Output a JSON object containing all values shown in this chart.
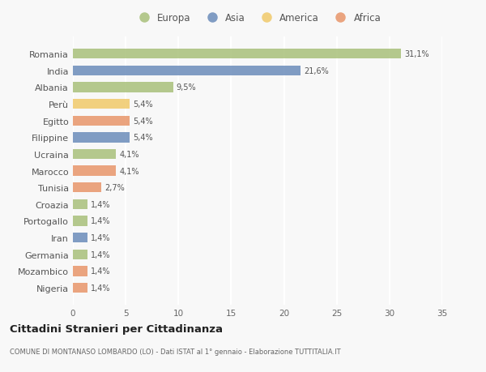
{
  "countries": [
    "Romania",
    "India",
    "Albania",
    "Perù",
    "Egitto",
    "Filippine",
    "Ucraina",
    "Marocco",
    "Tunisia",
    "Croazia",
    "Portogallo",
    "Iran",
    "Germania",
    "Mozambico",
    "Nigeria"
  ],
  "values": [
    31.1,
    21.6,
    9.5,
    5.4,
    5.4,
    5.4,
    4.1,
    4.1,
    2.7,
    1.4,
    1.4,
    1.4,
    1.4,
    1.4,
    1.4
  ],
  "labels": [
    "31,1%",
    "21,6%",
    "9,5%",
    "5,4%",
    "5,4%",
    "5,4%",
    "4,1%",
    "4,1%",
    "2,7%",
    "1,4%",
    "1,4%",
    "1,4%",
    "1,4%",
    "1,4%",
    "1,4%"
  ],
  "continents": [
    "Europa",
    "Asia",
    "Europa",
    "America",
    "Africa",
    "Asia",
    "Europa",
    "Africa",
    "Africa",
    "Europa",
    "Europa",
    "Asia",
    "Europa",
    "Africa",
    "Africa"
  ],
  "continent_colors": {
    "Europa": "#a8c07a",
    "Asia": "#6b8cba",
    "America": "#f0c96a",
    "Africa": "#e8956a"
  },
  "legend_order": [
    "Europa",
    "Asia",
    "America",
    "Africa"
  ],
  "xlim": [
    0,
    35
  ],
  "xticks": [
    0,
    5,
    10,
    15,
    20,
    25,
    30,
    35
  ],
  "title": "Cittadini Stranieri per Cittadinanza",
  "subtitle": "COMUNE DI MONTANASO LOMBARDO (LO) - Dati ISTAT al 1° gennaio - Elaborazione TUTTITALIA.IT",
  "bg_color": "#f8f8f8",
  "grid_color": "#ffffff",
  "bar_height": 0.6
}
